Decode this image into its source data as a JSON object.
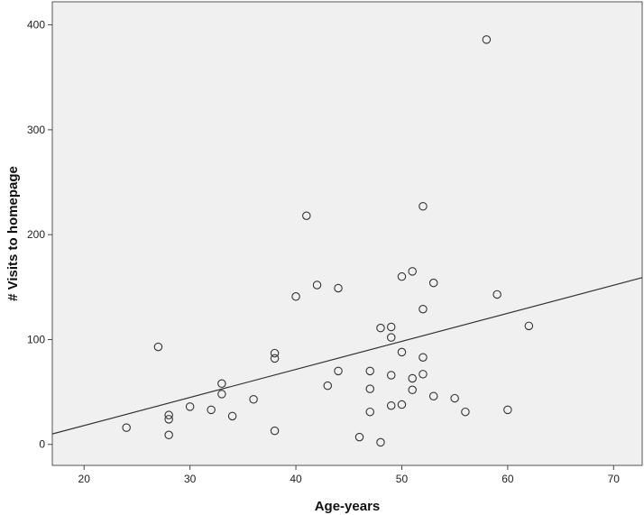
{
  "chart_data": {
    "type": "scatter",
    "title": "",
    "xlabel": "Age-years",
    "ylabel": "# Visits to homepage",
    "xlim": [
      17,
      72.7
    ],
    "ylim": [
      -20,
      422
    ],
    "xticks": [
      20,
      30,
      40,
      50,
      60,
      70
    ],
    "yticks": [
      0,
      100,
      200,
      300,
      400
    ],
    "grid": false,
    "legend": "none",
    "plot_background": "#f0f0f0",
    "point_stroke": "#333333",
    "fit_line_color": "#333333",
    "points": [
      {
        "x": 24,
        "y": 16
      },
      {
        "x": 27,
        "y": 93
      },
      {
        "x": 28,
        "y": 28
      },
      {
        "x": 28,
        "y": 24
      },
      {
        "x": 28,
        "y": 9
      },
      {
        "x": 30,
        "y": 36
      },
      {
        "x": 32,
        "y": 33
      },
      {
        "x": 33,
        "y": 58
      },
      {
        "x": 33,
        "y": 48
      },
      {
        "x": 34,
        "y": 27
      },
      {
        "x": 36,
        "y": 43
      },
      {
        "x": 38,
        "y": 87
      },
      {
        "x": 38,
        "y": 82
      },
      {
        "x": 38,
        "y": 13
      },
      {
        "x": 40,
        "y": 141
      },
      {
        "x": 41,
        "y": 218
      },
      {
        "x": 42,
        "y": 152
      },
      {
        "x": 43,
        "y": 56
      },
      {
        "x": 44,
        "y": 149
      },
      {
        "x": 44,
        "y": 70
      },
      {
        "x": 46,
        "y": 7
      },
      {
        "x": 47,
        "y": 70
      },
      {
        "x": 47,
        "y": 53
      },
      {
        "x": 47,
        "y": 31
      },
      {
        "x": 48,
        "y": 111
      },
      {
        "x": 48,
        "y": 2
      },
      {
        "x": 49,
        "y": 112
      },
      {
        "x": 49,
        "y": 102
      },
      {
        "x": 49,
        "y": 66
      },
      {
        "x": 49,
        "y": 37
      },
      {
        "x": 50,
        "y": 160
      },
      {
        "x": 50,
        "y": 88
      },
      {
        "x": 50,
        "y": 38
      },
      {
        "x": 51,
        "y": 165
      },
      {
        "x": 51,
        "y": 63
      },
      {
        "x": 51,
        "y": 52
      },
      {
        "x": 52,
        "y": 227
      },
      {
        "x": 52,
        "y": 129
      },
      {
        "x": 52,
        "y": 83
      },
      {
        "x": 52,
        "y": 67
      },
      {
        "x": 53,
        "y": 154
      },
      {
        "x": 53,
        "y": 46
      },
      {
        "x": 55,
        "y": 44
      },
      {
        "x": 56,
        "y": 31
      },
      {
        "x": 58,
        "y": 386
      },
      {
        "x": 59,
        "y": 143
      },
      {
        "x": 60,
        "y": 33
      },
      {
        "x": 62,
        "y": 113
      }
    ],
    "fit_line": {
      "x": [
        17,
        72.7
      ],
      "y": [
        10,
        159
      ]
    }
  }
}
